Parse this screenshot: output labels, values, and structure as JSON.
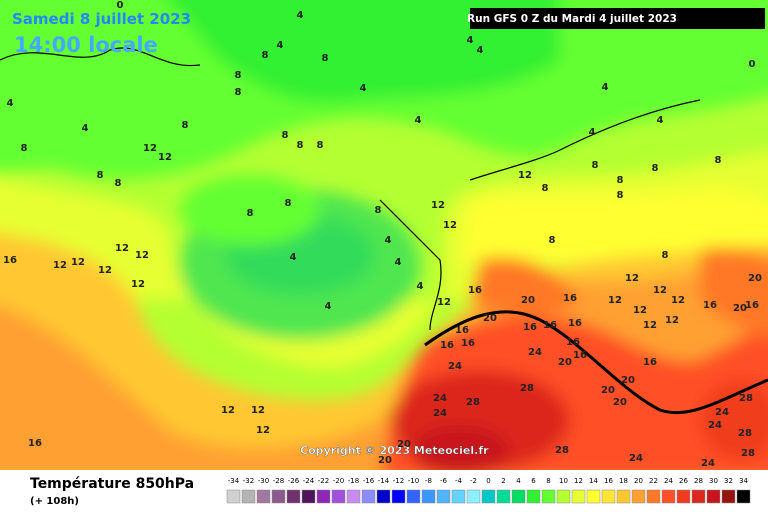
{
  "header": {
    "date": "Samedi 8 juillet 2023",
    "time": "14:00 locale",
    "run": "Run GFS 0 Z du Mardi 4 juillet 2023"
  },
  "map": {
    "copyright": "Copyright © 2023 Meteociel.fr",
    "labels": [
      0,
      0,
      4,
      8,
      4,
      8,
      8,
      12,
      12,
      8,
      8,
      8,
      8,
      4,
      4,
      8,
      4,
      4,
      8,
      8,
      8,
      8,
      8,
      8,
      4,
      4,
      4,
      4,
      4,
      16,
      12,
      12,
      12,
      12,
      12,
      12,
      12,
      12,
      12,
      16,
      20,
      20,
      16,
      16,
      16,
      16,
      16,
      16,
      16,
      16,
      24,
      24,
      24,
      24,
      28,
      28,
      20,
      16,
      20,
      20,
      20,
      16,
      16,
      20,
      16,
      20,
      24,
      28,
      24,
      28,
      28,
      28,
      24,
      24,
      20,
      20,
      12,
      12,
      12,
      16,
      12,
      8,
      8,
      8,
      8,
      4,
      8,
      8,
      12,
      12,
      12,
      12,
      12,
      12,
      12,
      8,
      8,
      4,
      4,
      4,
      4
    ]
  },
  "footer": {
    "variable": "Température 850hPa",
    "lead": "(+ 108h)"
  },
  "legend": {
    "values": [
      -34,
      -32,
      -30,
      -28,
      -26,
      -24,
      -22,
      -20,
      -18,
      -16,
      -14,
      -12,
      -10,
      -8,
      -6,
      -4,
      -2,
      0,
      2,
      4,
      6,
      8,
      10,
      12,
      14,
      16,
      18,
      20,
      22,
      24,
      26,
      28,
      30,
      32,
      34
    ],
    "colors": [
      "#d0d0d0",
      "#b4b4b4",
      "#a078a0",
      "#8c5a8c",
      "#6e326e",
      "#50145a",
      "#8c28b4",
      "#a050dc",
      "#c88cf0",
      "#8c8cff",
      "#0000c8",
      "#0000ff",
      "#3264ff",
      "#3c96ff",
      "#50b4ff",
      "#64d2ff",
      "#8cf0ff",
      "#00c8c8",
      "#00dc96",
      "#00dc64",
      "#32f032",
      "#64ff32",
      "#b4ff32",
      "#e6ff32",
      "#ffff32",
      "#ffe632",
      "#ffc832",
      "#ffa032",
      "#ff7828",
      "#ff5028",
      "#f03c1e",
      "#dc281e",
      "#c8141e",
      "#96140f",
      "#000000"
    ]
  }
}
